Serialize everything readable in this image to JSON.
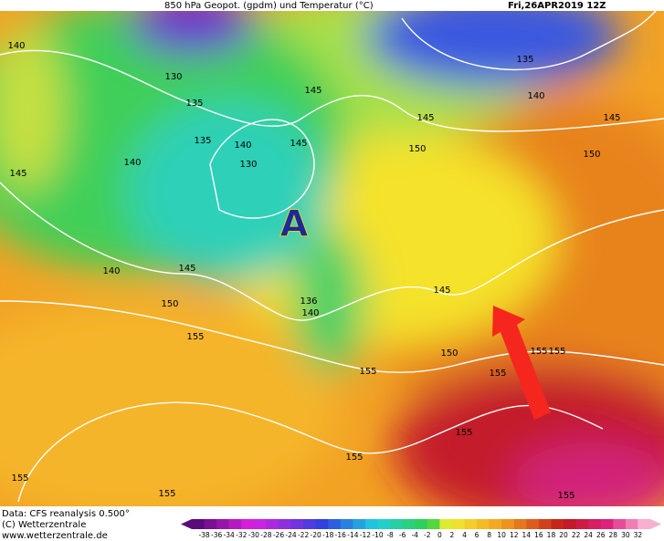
{
  "header": {
    "title": "850 hPa Geopot. (gpdm) und Temperatur (°C)",
    "date": "Fri,26APR2019 12Z"
  },
  "map": {
    "marker": "A",
    "contour_labels": [
      "140",
      "130",
      "135",
      "135",
      "140",
      "130",
      "145",
      "145",
      "145",
      "140",
      "140",
      "145",
      "150",
      "155",
      "140",
      "136",
      "145",
      "150",
      "150",
      "145",
      "140",
      "135",
      "145",
      "150",
      "155",
      "155",
      "155",
      "155",
      "155",
      "155",
      "155",
      "155",
      "155"
    ]
  },
  "footer": {
    "source": "Data: CFS reanalysis 0.500°",
    "copyright": "(C) Wetterzentrale",
    "url": "www.wetterzentrale.de"
  },
  "colorbar": {
    "labels": [
      -38,
      -36,
      -34,
      -32,
      -30,
      -28,
      -26,
      -24,
      -22,
      -20,
      -18,
      -16,
      -14,
      -12,
      -10,
      -8,
      -6,
      -4,
      -2,
      0,
      2,
      4,
      6,
      8,
      10,
      12,
      14,
      16,
      18,
      20,
      22,
      24,
      26,
      28,
      30,
      32
    ]
  }
}
